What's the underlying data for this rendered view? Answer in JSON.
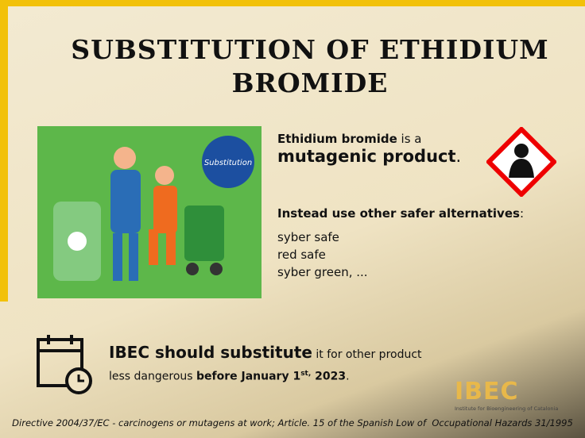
{
  "title": "SUBSTITUTION OF ETHIDIUM BROMIDE",
  "image": {
    "badge": "Substitution"
  },
  "intro": {
    "subject": "Ethidium bromide",
    "verb": " is a",
    "emphasis": "mutagenic product",
    "end": "."
  },
  "alternatives": {
    "heading": "Instead use other safer alternatives",
    "colon": ":",
    "items": [
      "syber safe",
      "red safe",
      "syber green, ..."
    ]
  },
  "notice": {
    "lead": "IBEC should substitute",
    "rest": " it for other product",
    "line2": "less dangerous ",
    "date": "before January 1",
    "sup": "st,",
    "year": " 2023",
    "end": "."
  },
  "logo": {
    "name": "IBEC",
    "tagline": "Institute for Bioengineering of Catalonia"
  },
  "footer": "Directive 2004/37/EC - carcinogens or mutagens at work; Article. 15 of the Spanish Low of  Occupational Hazards 31/1995"
}
